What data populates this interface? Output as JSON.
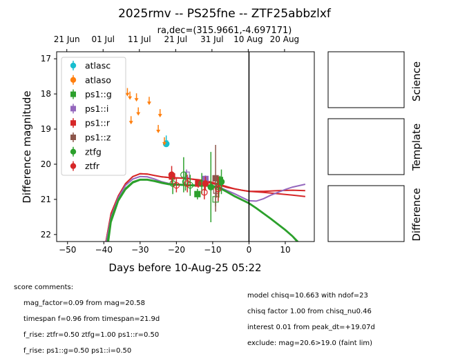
{
  "figure": {
    "title": "2025rmv -- PS25fne -- ZTF25abbzlxf",
    "subtitle": "ra,dec=(315.9661,-4.697171)"
  },
  "side_panels": [
    {
      "label": "Science"
    },
    {
      "label": "Template"
    },
    {
      "label": "Difference"
    }
  ],
  "comments_left": [
    "score comments:",
    "mag_factor=0.09 from mag=20.58",
    "timespan f=0.96 from timespan=21.9d",
    "f_rise: ztfr=0.50 ztfg=1.00 ps1::r=0.50",
    "f_rise: ps1::g=0.50 ps1::i=0.50"
  ],
  "comments_right": [
    "model chisq=10.663 with ndof=23",
    "chisq factor 1.00 from chisq_nu0.46",
    "interest 0.01 from peak_dt=+19.07d",
    "exclude: mag=20.6>19.0 (faint lim)"
  ],
  "chart_data": {
    "type": "scatter",
    "xlabel": "Days before 10-Aug-25 05:22",
    "ylabel": "Difference magnitude",
    "xlim": [
      -53,
      18
    ],
    "ylim": [
      22.2,
      16.8
    ],
    "y_inverted": true,
    "xticks": [
      -50,
      -40,
      -30,
      -20,
      -10,
      0,
      10
    ],
    "yticks": [
      17,
      18,
      19,
      20,
      21,
      22
    ],
    "top_axis_ticks": [
      {
        "x": -50.2,
        "label": "21 Jun"
      },
      {
        "x": -40.2,
        "label": "01 Jul"
      },
      {
        "x": -30.2,
        "label": "11 Jul"
      },
      {
        "x": -20.2,
        "label": "21 Jul"
      },
      {
        "x": -10.2,
        "label": "31 Jul"
      },
      {
        "x": -0.2,
        "label": "10 Aug"
      },
      {
        "x": 9.8,
        "label": "20 Aug"
      }
    ],
    "vertical_line_x": 0,
    "legend_position": "upper left",
    "grid": false,
    "series": [
      {
        "name": "atlasc",
        "color": "#17becf",
        "marker": "circle",
        "points": [
          {
            "x": -22.8,
            "y": 19.42,
            "err": 0.08
          }
        ],
        "upper_limits": [
          {
            "x": -22.8,
            "y": 19.3
          }
        ]
      },
      {
        "name": "atlaso",
        "color": "#ff7f0e",
        "marker": "circle",
        "points": [],
        "upper_limits": [
          {
            "x": -33.5,
            "y": 17.95
          },
          {
            "x": -32.8,
            "y": 18.05
          },
          {
            "x": -31.0,
            "y": 18.1
          },
          {
            "x": -27.5,
            "y": 18.2
          },
          {
            "x": -32.5,
            "y": 18.75
          },
          {
            "x": -30.5,
            "y": 18.5
          },
          {
            "x": -25.0,
            "y": 19.0
          },
          {
            "x": -24.5,
            "y": 18.55
          },
          {
            "x": -23.3,
            "y": 19.35
          }
        ]
      },
      {
        "name": "ps1::g",
        "color": "#2ca02c",
        "marker": "square",
        "points": [
          {
            "x": -14.2,
            "y": 20.85,
            "err": 0.15,
            "open": false
          },
          {
            "x": -8.0,
            "y": 20.45,
            "err": 0.12,
            "open": false
          },
          {
            "x": -9.2,
            "y": 21.0,
            "err": 0.2,
            "open": true
          }
        ]
      },
      {
        "name": "ps1::i",
        "color": "#9467bd",
        "marker": "square",
        "points": [
          {
            "x": -12.0,
            "y": 20.42,
            "err": 0.1,
            "open": false
          },
          {
            "x": -17.2,
            "y": 20.3,
            "err": 0.15,
            "open": true
          }
        ]
      },
      {
        "name": "ps1::r",
        "color": "#d62728",
        "marker": "square",
        "points": [
          {
            "x": -21.2,
            "y": 20.35,
            "err": 0.15,
            "open": false
          },
          {
            "x": -14.0,
            "y": 20.55,
            "err": 0.12,
            "open": false
          }
        ]
      },
      {
        "name": "ps1::z",
        "color": "#8c564b",
        "marker": "square",
        "points": [
          {
            "x": -9.2,
            "y": 20.4,
            "err": 0.95,
            "open": false
          },
          {
            "x": -9.0,
            "y": 20.75,
            "err": 0.2,
            "open": true
          }
        ]
      },
      {
        "name": "ztfg",
        "color": "#2ca02c",
        "marker": "circle",
        "points": [
          {
            "x": -21.0,
            "y": 20.55,
            "err": 0.3,
            "open": true
          },
          {
            "x": -18.0,
            "y": 20.3,
            "err": 0.5,
            "open": true
          },
          {
            "x": -17.5,
            "y": 20.5,
            "err": 0.25,
            "open": true
          },
          {
            "x": -16.2,
            "y": 20.6,
            "err": 0.3,
            "open": true
          },
          {
            "x": -13.0,
            "y": 20.55,
            "err": 0.3,
            "open": true
          },
          {
            "x": -10.5,
            "y": 20.65,
            "err": 1.0,
            "open": false
          },
          {
            "x": -8.3,
            "y": 20.65,
            "err": 0.3,
            "open": true
          },
          {
            "x": -7.6,
            "y": 20.5,
            "err": 0.35,
            "open": false
          }
        ]
      },
      {
        "name": "ztfr",
        "color": "#d62728",
        "marker": "circle",
        "points": [
          {
            "x": -21.3,
            "y": 20.3,
            "err": 0.25,
            "open": false
          },
          {
            "x": -20.0,
            "y": 20.6,
            "err": 0.2,
            "open": true
          },
          {
            "x": -17.0,
            "y": 20.55,
            "err": 0.25,
            "open": true
          },
          {
            "x": -12.3,
            "y": 20.8,
            "err": 0.2,
            "open": true
          },
          {
            "x": -12.0,
            "y": 20.55,
            "err": 0.2,
            "open": false
          },
          {
            "x": -8.5,
            "y": 20.7,
            "err": 0.35,
            "open": true
          }
        ]
      }
    ],
    "model_curves": [
      {
        "color": "#d62728",
        "points": [
          [
            -39.4,
            22.2
          ],
          [
            -38,
            21.4
          ],
          [
            -36,
            20.9
          ],
          [
            -34,
            20.55
          ],
          [
            -32,
            20.35
          ],
          [
            -30,
            20.27
          ],
          [
            -28,
            20.28
          ],
          [
            -26,
            20.32
          ],
          [
            -24,
            20.36
          ],
          [
            -22,
            20.38
          ],
          [
            -20,
            20.39
          ],
          [
            -18,
            20.4
          ],
          [
            -16,
            20.42
          ],
          [
            -14,
            20.45
          ],
          [
            -12,
            20.5
          ],
          [
            -10,
            20.55
          ],
          [
            -8,
            20.6
          ],
          [
            -6,
            20.66
          ],
          [
            -4,
            20.7
          ],
          [
            -2,
            20.74
          ],
          [
            0,
            20.77
          ],
          [
            4,
            20.8
          ],
          [
            8,
            20.84
          ],
          [
            12,
            20.88
          ],
          [
            15.5,
            20.92
          ]
        ]
      },
      {
        "color": "#d62728",
        "points": [
          [
            -39.4,
            22.2
          ],
          [
            -38,
            21.4
          ],
          [
            -36,
            20.9
          ],
          [
            -34,
            20.55
          ],
          [
            -32,
            20.35
          ],
          [
            -30,
            20.27
          ],
          [
            -28,
            20.28
          ],
          [
            -26,
            20.32
          ],
          [
            -24,
            20.36
          ],
          [
            -22,
            20.38
          ],
          [
            -20,
            20.39
          ],
          [
            -18,
            20.4
          ],
          [
            -16,
            20.42
          ],
          [
            -14,
            20.44
          ],
          [
            -12,
            20.47
          ],
          [
            -10,
            20.52
          ],
          [
            -8,
            20.58
          ],
          [
            -6,
            20.64
          ],
          [
            -4,
            20.7
          ],
          [
            -2,
            20.74
          ],
          [
            0,
            20.77
          ],
          [
            4,
            20.77
          ],
          [
            8,
            20.75
          ],
          [
            12,
            20.74
          ],
          [
            15.5,
            20.75
          ]
        ]
      },
      {
        "color": "#9467bd",
        "points": [
          [
            -39.3,
            22.2
          ],
          [
            -38,
            21.5
          ],
          [
            -36,
            20.95
          ],
          [
            -34,
            20.6
          ],
          [
            -32,
            20.42
          ],
          [
            -30,
            20.35
          ],
          [
            -28,
            20.36
          ],
          [
            -26,
            20.42
          ],
          [
            -24,
            20.5
          ],
          [
            -22,
            20.55
          ],
          [
            -20,
            20.57
          ],
          [
            -18,
            20.58
          ],
          [
            -16,
            20.59
          ],
          [
            -14,
            20.6
          ],
          [
            -12,
            20.6
          ],
          [
            -10,
            20.62
          ],
          [
            -8,
            20.66
          ],
          [
            -6,
            20.75
          ],
          [
            -4,
            20.84
          ],
          [
            -2,
            20.94
          ],
          [
            0,
            21.04
          ],
          [
            2,
            21.05
          ],
          [
            4,
            20.98
          ],
          [
            6,
            20.88
          ],
          [
            8,
            20.8
          ],
          [
            10,
            20.72
          ],
          [
            12,
            20.65
          ],
          [
            15.5,
            20.57
          ]
        ]
      },
      {
        "color": "#2ca02c",
        "points": [
          [
            -39.0,
            22.2
          ],
          [
            -38,
            21.55
          ],
          [
            -36,
            21.0
          ],
          [
            -34,
            20.68
          ],
          [
            -32,
            20.5
          ],
          [
            -30,
            20.43
          ],
          [
            -28,
            20.43
          ],
          [
            -26,
            20.47
          ],
          [
            -24,
            20.52
          ],
          [
            -22,
            20.56
          ],
          [
            -20,
            20.57
          ],
          [
            -18,
            20.58
          ],
          [
            -16,
            20.59
          ],
          [
            -14,
            20.6
          ],
          [
            -12,
            20.6
          ],
          [
            -10,
            20.61
          ],
          [
            -8,
            20.67
          ],
          [
            -6,
            20.78
          ],
          [
            -4,
            20.9
          ],
          [
            -2,
            21.0
          ],
          [
            0,
            21.1
          ],
          [
            2,
            21.24
          ],
          [
            4,
            21.39
          ],
          [
            6,
            21.54
          ],
          [
            8,
            21.7
          ],
          [
            10,
            21.86
          ],
          [
            12,
            22.04
          ],
          [
            13.5,
            22.2
          ]
        ]
      },
      {
        "color": "#2ca02c",
        "points": [
          [
            -38.7,
            22.2
          ],
          [
            -38,
            21.65
          ],
          [
            -36,
            21.05
          ],
          [
            -34,
            20.72
          ],
          [
            -32,
            20.53
          ],
          [
            -30,
            20.45
          ],
          [
            -28,
            20.45
          ],
          [
            -26,
            20.49
          ],
          [
            -24,
            20.54
          ],
          [
            -22,
            20.58
          ],
          [
            -20,
            20.59
          ],
          [
            -18,
            20.6
          ],
          [
            -16,
            20.61
          ],
          [
            -14,
            20.62
          ],
          [
            -12,
            20.62
          ],
          [
            -10,
            20.63
          ],
          [
            -8,
            20.69
          ],
          [
            -6,
            20.8
          ],
          [
            -4,
            20.92
          ],
          [
            -2,
            21.02
          ],
          [
            0,
            21.12
          ],
          [
            2,
            21.26
          ],
          [
            4,
            21.41
          ],
          [
            6,
            21.56
          ],
          [
            8,
            21.72
          ],
          [
            10,
            21.88
          ],
          [
            12,
            22.06
          ],
          [
            13.2,
            22.2
          ]
        ]
      }
    ]
  }
}
